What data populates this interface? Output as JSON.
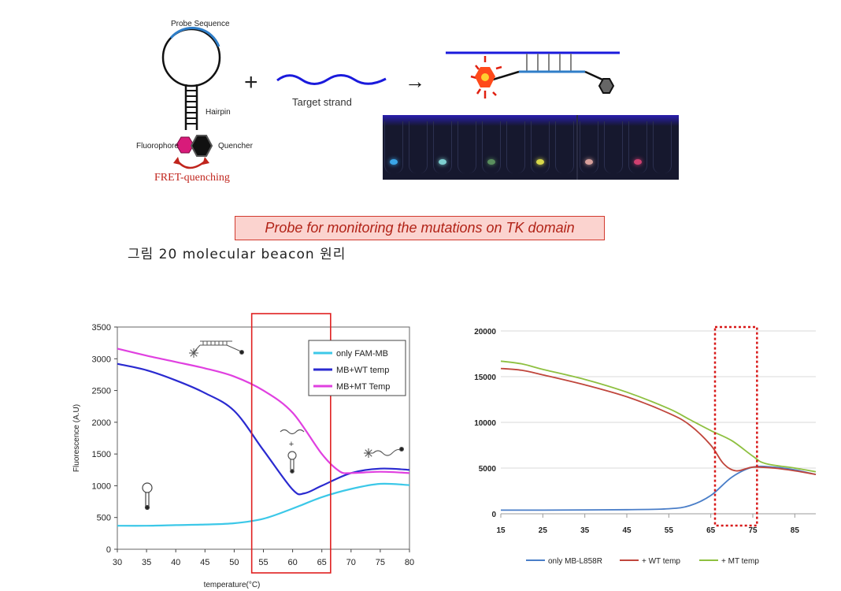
{
  "schematic": {
    "probe_sequence_label": "Probe Sequence",
    "hairpin_label": "Hairpin",
    "fluorophore_label": "Fluorophore",
    "quencher_label": "Quencher",
    "fret_label": "FRET-quenching",
    "plus_sign": "+",
    "target_label": "Target strand",
    "arrow": "→"
  },
  "gel_image": {
    "tube_dots": [
      "#3ba6e8",
      "",
      "#7ecfd0",
      "",
      "#5a8f5e",
      "",
      "#d8d84a",
      "",
      "#d8a09c",
      "",
      "#d04070",
      ""
    ]
  },
  "banner_text": "Probe for monitoring the mutations on TK domain",
  "figure_caption": "그림  20  molecular  beacon  원리",
  "colors": {
    "banner_border": "#d23a2e",
    "banner_fill": "#fbd3cf",
    "fluorophore": "#d81b7a",
    "quencher": "#111111",
    "fret_text": "#c0241c"
  },
  "chart_data": [
    {
      "type": "line",
      "xlabel": "temperature(°C)",
      "ylabel": "Fluorescence (A.U)",
      "xlim": [
        30,
        80
      ],
      "ylim": [
        0,
        3500
      ],
      "x_ticks": [
        30,
        35,
        40,
        45,
        50,
        55,
        60,
        65,
        70,
        75,
        80
      ],
      "y_ticks": [
        0,
        500,
        1000,
        1500,
        2000,
        2500,
        3000,
        3500
      ],
      "legend_position": "top-right",
      "highlight_range": [
        53,
        66.5
      ],
      "series": [
        {
          "name": "only FAM-MB",
          "color": "#3cc8e8",
          "x": [
            30,
            35,
            40,
            45,
            50,
            55,
            60,
            65,
            70,
            75,
            80
          ],
          "y": [
            370,
            370,
            380,
            390,
            410,
            480,
            640,
            820,
            950,
            1030,
            1010
          ]
        },
        {
          "name": "MB+WT temp",
          "color": "#2a2ad0",
          "x": [
            30,
            35,
            40,
            45,
            50,
            55,
            60,
            62,
            65,
            70,
            75,
            80
          ],
          "y": [
            2920,
            2820,
            2660,
            2460,
            2180,
            1560,
            940,
            880,
            1000,
            1200,
            1270,
            1250
          ]
        },
        {
          "name": "MB+MT Temp",
          "color": "#e040e0",
          "x": [
            30,
            35,
            40,
            45,
            50,
            55,
            60,
            65,
            68,
            70,
            75,
            80
          ],
          "y": [
            3160,
            3050,
            2950,
            2850,
            2720,
            2500,
            2150,
            1500,
            1230,
            1200,
            1220,
            1200
          ]
        }
      ]
    },
    {
      "type": "line",
      "xlim": [
        15,
        90
      ],
      "ylim": [
        0,
        20000
      ],
      "x_ticks": [
        15,
        25,
        35,
        45,
        55,
        65,
        75,
        85
      ],
      "y_ticks": [
        0,
        5000,
        10000,
        15000,
        20000
      ],
      "legend_position": "bottom",
      "highlight_range": [
        66,
        76
      ],
      "series": [
        {
          "name": "only MB-L858R",
          "color": "#4a7ec8",
          "x": [
            15,
            25,
            35,
            45,
            55,
            60,
            65,
            70,
            75,
            80,
            85,
            90
          ],
          "y": [
            400,
            400,
            420,
            450,
            550,
            900,
            2000,
            4000,
            5100,
            5100,
            4800,
            4300
          ]
        },
        {
          "name": "+ WT temp",
          "color": "#c0463c",
          "x": [
            15,
            20,
            25,
            35,
            45,
            55,
            60,
            65,
            68,
            71,
            75,
            80,
            85,
            90
          ],
          "y": [
            15900,
            15700,
            15200,
            14100,
            12800,
            11000,
            9700,
            7500,
            5500,
            4700,
            5100,
            5000,
            4700,
            4300
          ]
        },
        {
          "name": "+ MT temp",
          "color": "#8ec040",
          "x": [
            15,
            20,
            25,
            35,
            45,
            55,
            60,
            65,
            70,
            75,
            78,
            85,
            90
          ],
          "y": [
            16700,
            16400,
            15800,
            14700,
            13300,
            11500,
            10300,
            9100,
            8000,
            6300,
            5500,
            5000,
            4600
          ]
        }
      ]
    }
  ]
}
